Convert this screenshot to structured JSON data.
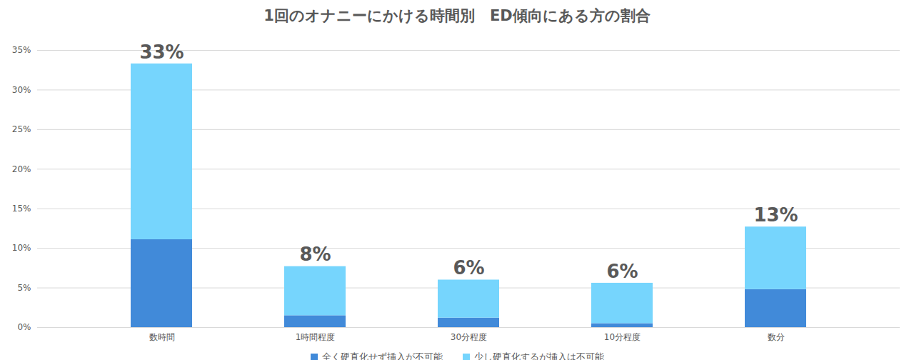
{
  "chart_data": {
    "type": "bar",
    "stacked": true,
    "title": "1回のオナニーにかける時間別　ED傾向にある方の割合",
    "categories": [
      "数時間",
      "1時間程度",
      "30分程度",
      "10分程度",
      "数分"
    ],
    "series": [
      {
        "name": "全く硬直化せず挿入が不可能",
        "color": "#418ad9",
        "values": [
          11.1,
          1.5,
          1.2,
          0.5,
          4.8
        ]
      },
      {
        "name": "少し硬直化するが挿入は不可能",
        "color": "#76d5fd",
        "values": [
          22.2,
          6.2,
          4.8,
          5.1,
          7.9
        ]
      }
    ],
    "total_labels": [
      "33%",
      "8%",
      "6%",
      "6%",
      "13%"
    ],
    "ylim": [
      0,
      35
    ],
    "yticks": [
      {
        "value": 0,
        "label": "0%"
      },
      {
        "value": 5,
        "label": "5%"
      },
      {
        "value": 10,
        "label": "10%"
      },
      {
        "value": 15,
        "label": "15%"
      },
      {
        "value": 20,
        "label": "20%"
      },
      {
        "value": 25,
        "label": "25%"
      },
      {
        "value": 30,
        "label": "30%"
      },
      {
        "value": 35,
        "label": "35%"
      }
    ],
    "grid": true,
    "legend": "bottom"
  }
}
